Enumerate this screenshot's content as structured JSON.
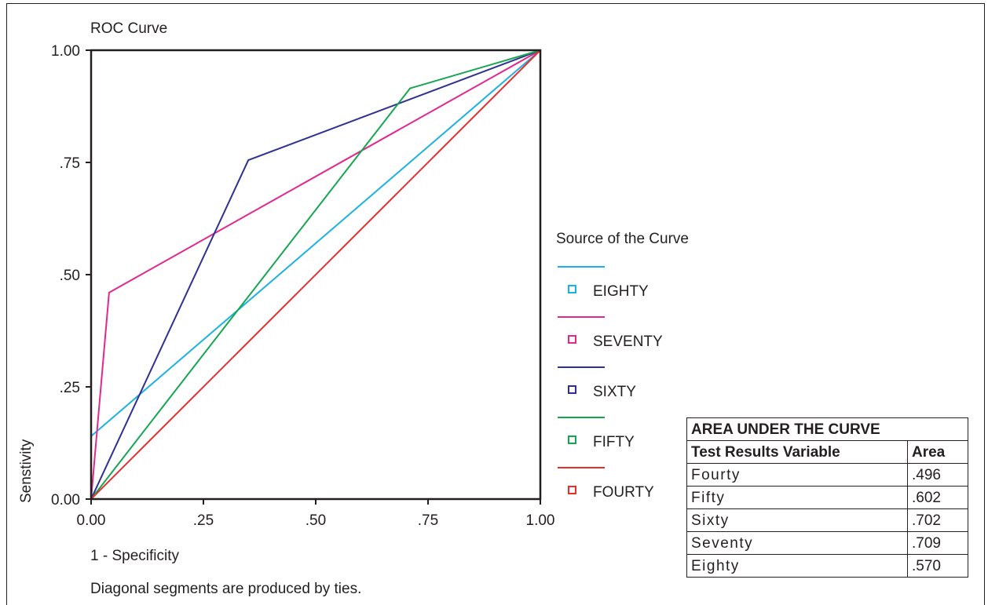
{
  "chart_data": {
    "type": "line",
    "title": "ROC Curve",
    "xlabel": "1 - Specificity",
    "ylabel": "Senstivity",
    "note": "Diagonal segments are produced by ties.",
    "xlim": [
      0,
      1
    ],
    "ylim": [
      0,
      1
    ],
    "x_ticks": [
      0,
      0.25,
      0.5,
      0.75,
      1
    ],
    "x_tick_labels": [
      "0.00",
      ".25",
      ".50",
      ".75",
      "1.00"
    ],
    "y_ticks": [
      0,
      0.25,
      0.5,
      0.75,
      1
    ],
    "y_tick_labels": [
      "0.00",
      ".25",
      ".50",
      ".75",
      "1.00"
    ],
    "grid": false,
    "legend": {
      "title": "Source of the Curve",
      "placement": "right"
    },
    "series": [
      {
        "name": "EIGHTY",
        "color": "#1cb1e4",
        "points": [
          [
            0,
            0.14
          ],
          [
            1,
            1
          ]
        ]
      },
      {
        "name": "SEVENTY",
        "color": "#e0288f",
        "points": [
          [
            0,
            0
          ],
          [
            0.04,
            0.46
          ],
          [
            1,
            1
          ]
        ]
      },
      {
        "name": "SIXTY",
        "color": "#2e3191",
        "points": [
          [
            0,
            0
          ],
          [
            0.35,
            0.755
          ],
          [
            1,
            1
          ]
        ]
      },
      {
        "name": "FIFTY",
        "color": "#16a651",
        "points": [
          [
            0,
            0
          ],
          [
            0.71,
            0.915
          ],
          [
            1,
            1
          ]
        ]
      },
      {
        "name": "FOURTY",
        "color": "#e72e2e",
        "points": [
          [
            0,
            0
          ],
          [
            1,
            1
          ]
        ]
      }
    ]
  },
  "auc_table": {
    "title": "AREA UNDER THE CURVE",
    "headers": [
      "Test Results Variable",
      "Area"
    ],
    "rows": [
      {
        "variable": "Fourty",
        "area": ".496"
      },
      {
        "variable": "Fifty",
        "area": ".602"
      },
      {
        "variable": "Sixty",
        "area": ".702"
      },
      {
        "variable": "Seventy",
        "area": ".709"
      },
      {
        "variable": "Eighty",
        "area": ".570"
      }
    ]
  }
}
